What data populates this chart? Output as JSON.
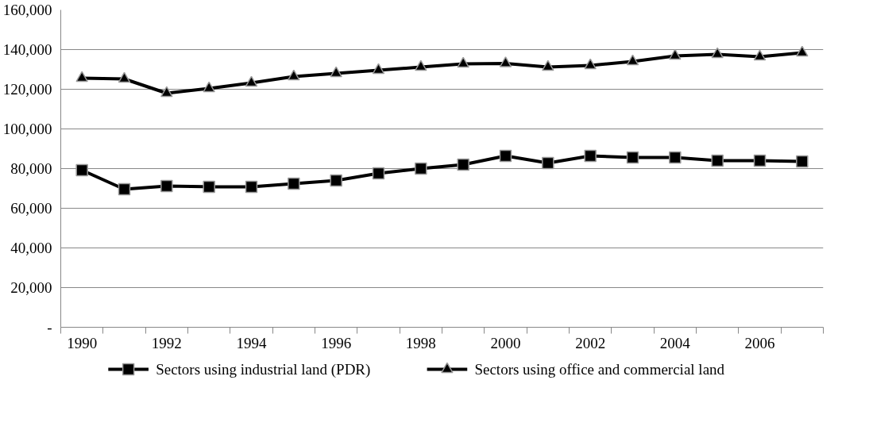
{
  "chart_data": {
    "type": "line",
    "categories": [
      "1990",
      null,
      "1992",
      null,
      "1994",
      null,
      "1996",
      null,
      "1998",
      null,
      "2000",
      null,
      "2002",
      null,
      "2004",
      null,
      "2006",
      null
    ],
    "ylim": [
      0,
      160000
    ],
    "yticks": [
      {
        "value": 0,
        "label": "-"
      },
      {
        "value": 20000,
        "label": "20,000"
      },
      {
        "value": 40000,
        "label": "40,000"
      },
      {
        "value": 60000,
        "label": "60,000"
      },
      {
        "value": 80000,
        "label": "80,000"
      },
      {
        "value": 100000,
        "label": "100,000"
      },
      {
        "value": 120000,
        "label": "120,000"
      },
      {
        "value": 140000,
        "label": "140,000"
      },
      {
        "value": 160000,
        "label": "160,000"
      }
    ],
    "grid": "y",
    "legend": "bottom",
    "line_style": "solid",
    "series": [
      {
        "name": "Sectors using industrial land (PDR)",
        "color": "#000000",
        "marker": "square",
        "values": [
          79200,
          69600,
          71200,
          70800,
          70800,
          72400,
          74000,
          77600,
          80000,
          82000,
          86400,
          82800,
          86400,
          85600,
          85600,
          84000,
          84000,
          83600
        ]
      },
      {
        "name": "Sectors using office and commercial land",
        "color": "#000000",
        "marker": "triangle",
        "values": [
          125600,
          125200,
          118000,
          120400,
          123200,
          126400,
          128000,
          129600,
          131200,
          132800,
          133000,
          131200,
          132000,
          134000,
          136800,
          137600,
          136400,
          138400
        ]
      }
    ]
  }
}
